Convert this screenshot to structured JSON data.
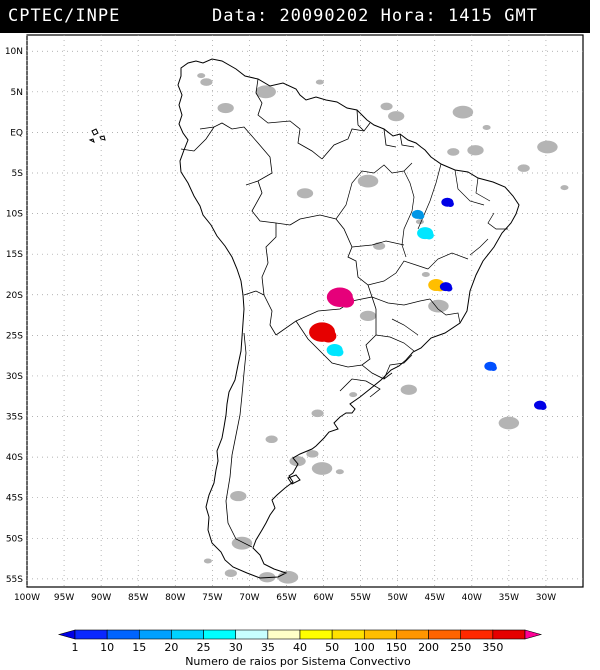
{
  "header": {
    "source": "CPTEC/INPE",
    "data_label": "Data:",
    "date": "20090202",
    "hora_label": "Hora:",
    "time": "1415",
    "tz": "GMT"
  },
  "map": {
    "lon_range": [
      -100,
      -25
    ],
    "lat_range": [
      -56,
      12
    ],
    "lat_ticks": [
      "10N",
      "5N",
      "EQ",
      "5S",
      "10S",
      "15S",
      "20S",
      "25S",
      "30S",
      "35S",
      "40S",
      "45S",
      "50S",
      "55S"
    ],
    "lat_values": [
      10,
      5,
      0,
      -5,
      -10,
      -15,
      -20,
      -25,
      -30,
      -35,
      -40,
      -45,
      -50,
      -55
    ],
    "lon_ticks": [
      "100W",
      "95W",
      "90W",
      "85W",
      "80W",
      "75W",
      "70W",
      "65W",
      "60W",
      "55W",
      "50W",
      "45W",
      "40W",
      "35W",
      "30W"
    ],
    "lon_values": [
      -100,
      -95,
      -90,
      -85,
      -80,
      -75,
      -70,
      -65,
      -60,
      -55,
      -50,
      -45,
      -40,
      -35,
      -30
    ],
    "grid": "dotted",
    "cloud_color": "#b4b4b4",
    "coast_color": "#000000"
  },
  "systems": [
    {
      "lon": -43.3,
      "lat": -8.6,
      "count_class": 1,
      "color": "#0000e6"
    },
    {
      "lon": -46.3,
      "lat": -12.4,
      "count_class": 20,
      "color": "#00e6ff"
    },
    {
      "lon": -47.3,
      "lat": -10.1,
      "count_class": 15,
      "color": "#0096e6"
    },
    {
      "lon": -57.8,
      "lat": -20.3,
      "count_class": 350,
      "color": "#e6007a"
    },
    {
      "lon": -60.2,
      "lat": -24.6,
      "count_class": 250,
      "color": "#e60000"
    },
    {
      "lon": -58.5,
      "lat": -26.8,
      "count_class": 25,
      "color": "#00e6ff"
    },
    {
      "lon": -44.8,
      "lat": -18.8,
      "count_class": 100,
      "color": "#ffbe00"
    },
    {
      "lon": -43.5,
      "lat": -19.0,
      "count_class": 1,
      "color": "#0000e6"
    },
    {
      "lon": -37.5,
      "lat": -28.8,
      "count_class": 10,
      "color": "#0050ff"
    },
    {
      "lon": -30.8,
      "lat": -33.6,
      "count_class": 1,
      "color": "#0000e6"
    }
  ],
  "colorbar": {
    "title": "Numero de raios por Sistema Convectivo",
    "labels": [
      "1",
      "10",
      "15",
      "20",
      "25",
      "30",
      "35",
      "40",
      "50",
      "100",
      "150",
      "200",
      "250",
      "350"
    ],
    "colors": [
      "#0000e6",
      "#0a28ff",
      "#0064ff",
      "#00a0ff",
      "#00d2ff",
      "#00ffff",
      "#c8ffff",
      "#ffffc8",
      "#ffff00",
      "#ffe100",
      "#ffbe00",
      "#ff9600",
      "#ff6400",
      "#ff2800",
      "#e60000",
      "#ff0096"
    ]
  }
}
